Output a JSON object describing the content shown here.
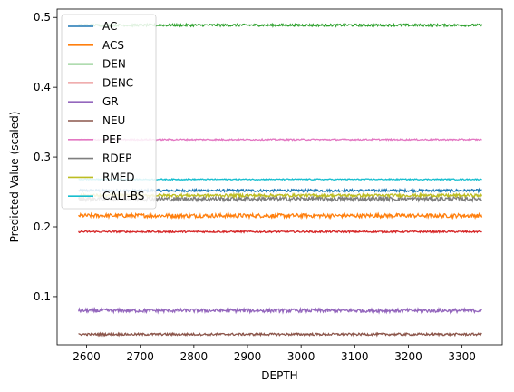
{
  "chart_data": {
    "type": "line",
    "xlabel": "DEPTH",
    "ylabel": "Predicted Value (scaled)",
    "xlim": [
      2545,
      3375
    ],
    "ylim": [
      0.031,
      0.512
    ],
    "x_range": [
      2585,
      3337
    ],
    "x_ticks": [
      2600,
      2700,
      2800,
      2900,
      3000,
      3100,
      3200,
      3300
    ],
    "y_ticks": [
      0.1,
      0.2,
      0.3,
      0.4,
      0.5
    ],
    "x_tick_labels": [
      "2600",
      "2700",
      "2800",
      "2900",
      "3000",
      "3100",
      "3200",
      "3300"
    ],
    "y_tick_labels": [
      "0.1",
      "0.2",
      "0.3",
      "0.4",
      "0.5"
    ],
    "grid": false,
    "legend_position": "upper-left",
    "series": [
      {
        "name": "AC",
        "value": 0.252,
        "noise": 0.0018,
        "color": "#1f77b4"
      },
      {
        "name": "ACS",
        "value": 0.216,
        "noise": 0.0028,
        "color": "#ff7f0e"
      },
      {
        "name": "DEN",
        "value": 0.489,
        "noise": 0.0016,
        "color": "#2ca02c"
      },
      {
        "name": "DENC",
        "value": 0.193,
        "noise": 0.0012,
        "color": "#d62728"
      },
      {
        "name": "GR",
        "value": 0.08,
        "noise": 0.0026,
        "color": "#9467bd"
      },
      {
        "name": "NEU",
        "value": 0.046,
        "noise": 0.0016,
        "color": "#8c564b"
      },
      {
        "name": "PEF",
        "value": 0.325,
        "noise": 0.001,
        "color": "#e377c2"
      },
      {
        "name": "RDEP",
        "value": 0.24,
        "noise": 0.003,
        "color": "#7f7f7f"
      },
      {
        "name": "RMED",
        "value": 0.245,
        "noise": 0.002,
        "color": "#bcbd22"
      },
      {
        "name": "CALI-BS",
        "value": 0.268,
        "noise": 0.0008,
        "color": "#17becf"
      }
    ]
  }
}
